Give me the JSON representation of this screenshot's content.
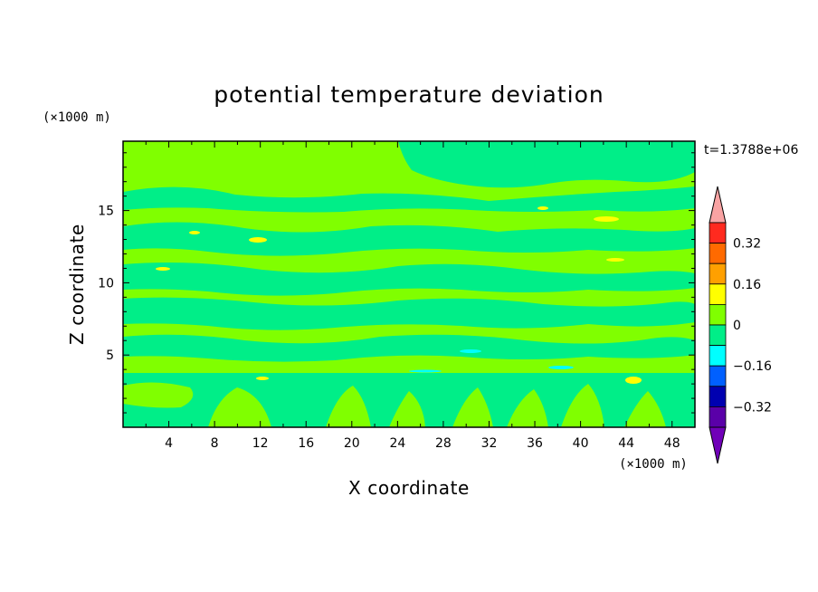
{
  "chart_data": {
    "type": "heatmap",
    "title": "potential temperature deviation",
    "xlabel": "X coordinate",
    "ylabel": "Z coordinate",
    "x_unit": "(×1000 m)",
    "y_unit": "(×1000 m)",
    "time_label": "t=1.3788e+06",
    "xlim": [
      0,
      50
    ],
    "ylim": [
      0,
      19.8
    ],
    "x_ticks": [
      "4",
      "8",
      "12",
      "16",
      "20",
      "24",
      "28",
      "32",
      "36",
      "40",
      "44",
      "48"
    ],
    "y_ticks": [
      "5",
      "10",
      "15"
    ],
    "colorbar": {
      "labels": [
        "0.32",
        "0.16",
        "0",
        "−0.16",
        "−0.32"
      ],
      "levels": [
        0.32,
        0.16,
        0,
        -0.16,
        -0.32
      ],
      "colors": [
        "#f9a3a3",
        "#ff2a1f",
        "#ff6a00",
        "#ffa000",
        "#ffff00",
        "#80ff00",
        "#00ee88",
        "#00ffff",
        "#0060ff",
        "#0000b0",
        "#5a00a8",
        "#7000b8"
      ]
    },
    "dominant_fills": {
      "positive_small": "#80ff00",
      "negative_small": "#00ee88"
    }
  }
}
